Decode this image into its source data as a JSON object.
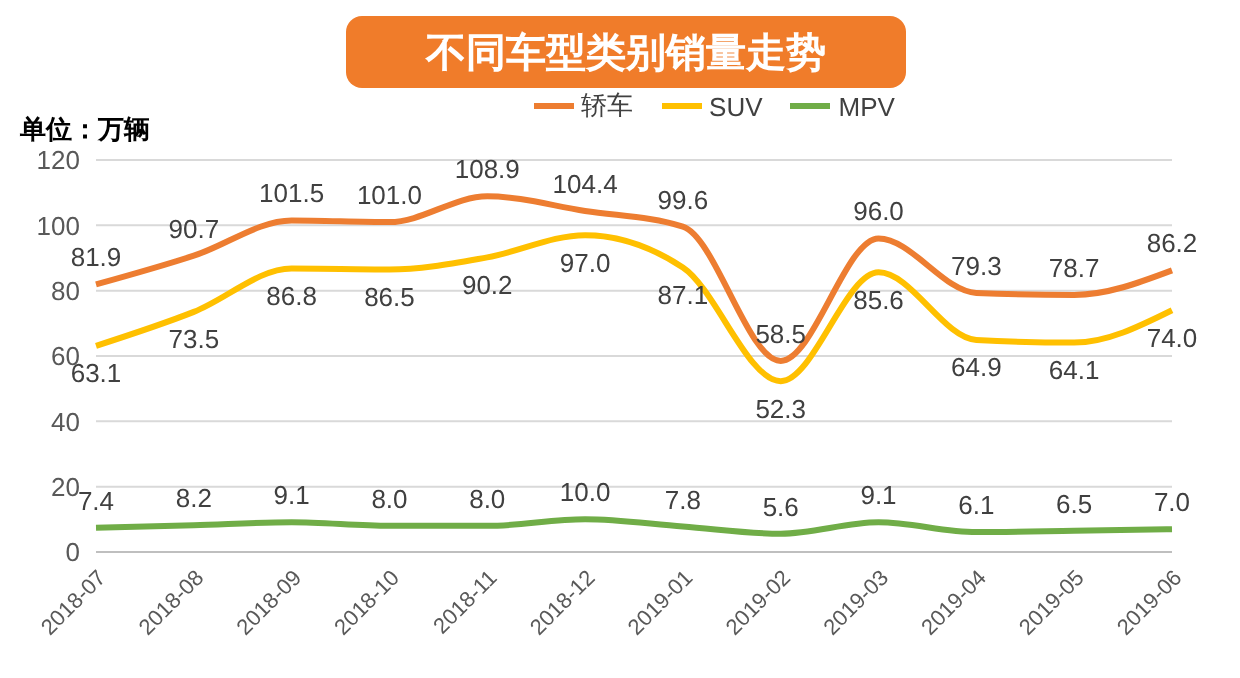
{
  "chart_data": {
    "type": "line",
    "title": "不同车型类别销量走势",
    "ylabel": "单位：万辆",
    "categories": [
      "2018-07",
      "2018-08",
      "2018-09",
      "2018-10",
      "2018-11",
      "2018-12",
      "2019-01",
      "2019-02",
      "2019-03",
      "2019-04",
      "2019-05",
      "2019-06"
    ],
    "series": [
      {
        "name": "轿车",
        "color": "#ed7d31",
        "values": [
          81.9,
          90.7,
          101.5,
          101.0,
          108.9,
          104.4,
          99.6,
          58.5,
          96.0,
          79.3,
          78.7,
          86.2
        ],
        "value_labels": [
          "81.9",
          "90.7",
          "101.5",
          "101.0",
          "108.9",
          "104.4",
          "99.6",
          "58.5",
          "96.0",
          "79.3",
          "78.7",
          "86.2"
        ]
      },
      {
        "name": "SUV",
        "color": "#ffc000",
        "values": [
          63.1,
          73.5,
          86.8,
          86.5,
          90.2,
          97.0,
          87.1,
          52.3,
          85.6,
          64.9,
          64.1,
          74.0
        ],
        "value_labels": [
          "63.1",
          "73.5",
          "86.8",
          "86.5",
          "90.2",
          "97.0",
          "87.1",
          "52.3",
          "85.6",
          "64.9",
          "64.1",
          "74.0"
        ]
      },
      {
        "name": "MPV",
        "color": "#70ad47",
        "values": [
          7.4,
          8.2,
          9.1,
          8.0,
          8.0,
          10.0,
          7.8,
          5.6,
          9.1,
          6.1,
          6.5,
          7.0
        ],
        "value_labels": [
          "7.4",
          "8.2",
          "9.1",
          "8.0",
          "8.0",
          "10.0",
          "7.8",
          "5.6",
          "9.1",
          "6.1",
          "6.5",
          "7.0"
        ]
      }
    ],
    "ylim": [
      0,
      120
    ],
    "yticks": [
      0,
      20,
      40,
      60,
      80,
      100,
      120
    ],
    "grid": "y",
    "legend": "top",
    "marker": "none",
    "line_style": "solid"
  }
}
